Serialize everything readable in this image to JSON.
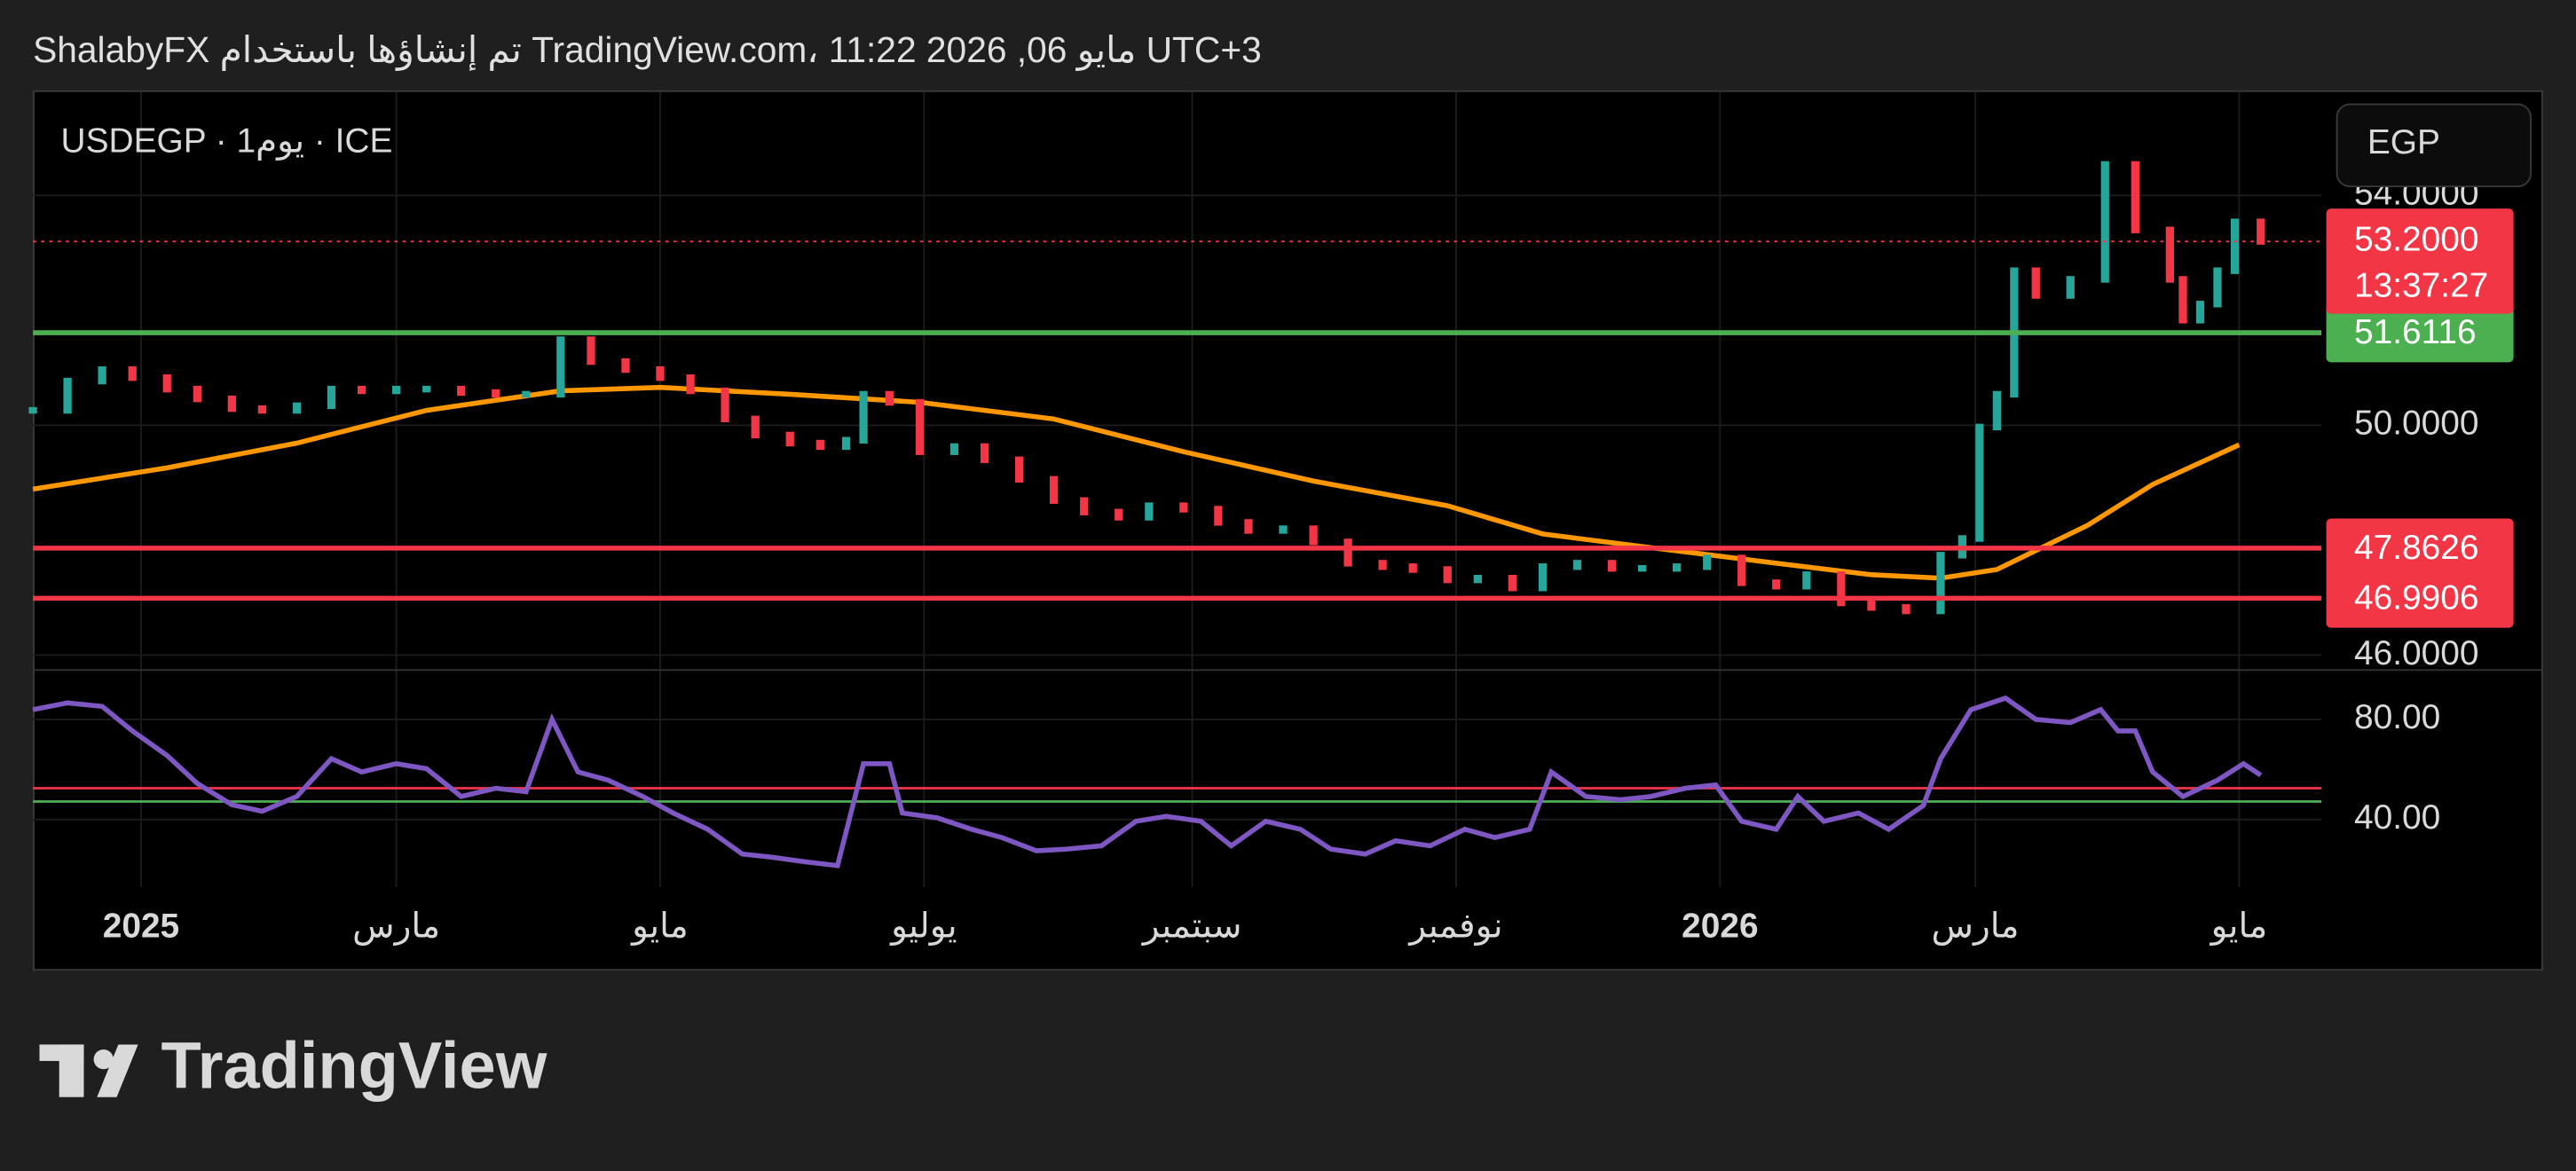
{
  "header": "ShalabyFX تم إنشاؤها باستخدام TradingView.com، 11:22 2026 ,06 مايو UTC+3",
  "currency_button": "EGP",
  "logo": "TradingView",
  "chart_data": [
    {
      "type": "candlestick",
      "title": "USDEGP · 1يوم · ICE",
      "up_color": "#26a69a",
      "down_color": "#f23645",
      "x": [
        -25,
        -17,
        -9,
        -2,
        6,
        13,
        21,
        28,
        36,
        44,
        51,
        59,
        66,
        74,
        82,
        89,
        97,
        104,
        112,
        120,
        127,
        135,
        142,
        150,
        157,
        163,
        167,
        173,
        180,
        188,
        195,
        203,
        211,
        218,
        226,
        233,
        241,
        249,
        256,
        264,
        271,
        279,
        287,
        294,
        302,
        309,
        317,
        324,
        332,
        340,
        347,
        355,
        362,
        370,
        378,
        385,
        393,
        400,
        408,
        416,
        421,
        425,
        429,
        433,
        438,
        446,
        454,
        461,
        469,
        472,
        476,
        480,
        484,
        490
      ],
      "values": [
        50.26,
        50.77,
        50.97,
        50.83,
        50.63,
        50.46,
        50.29,
        50.26,
        50.34,
        50.63,
        50.6,
        50.63,
        50.63,
        50.57,
        50.54,
        50.54,
        51.49,
        51.11,
        50.97,
        50.83,
        50.6,
        50.11,
        49.83,
        49.69,
        49.63,
        49.74,
        50.54,
        50.4,
        49.54,
        49.63,
        49.4,
        49.06,
        48.69,
        48.49,
        48.4,
        48.6,
        48.54,
        48.31,
        48.17,
        48.2,
        47.97,
        47.6,
        47.54,
        47.49,
        47.31,
        47.34,
        47.17,
        47.54,
        47.6,
        47.51,
        47.51,
        47.54,
        47.69,
        47.26,
        47.2,
        47.4,
        46.91,
        46.83,
        46.77,
        47.74,
        48.03,
        49.97,
        50.54,
        52.69,
        52.26,
        52.54,
        54.54,
        53.4,
        52.54,
        51.83,
        52.11,
        52.69,
        53.54,
        53.2
      ],
      "series": [
        {
          "color": "#ff9800",
          "x": [
            -25,
            6,
            36,
            66,
            97,
            120,
            150,
            180,
            211,
            241,
            271,
            302,
            324,
            347,
            378,
            400,
            416,
            429,
            450,
            465,
            485
          ],
          "values": [
            48.89,
            49.26,
            49.69,
            50.26,
            50.6,
            50.66,
            50.54,
            50.4,
            50.11,
            49.54,
            49.03,
            48.6,
            48.11,
            47.89,
            47.6,
            47.4,
            47.34,
            47.49,
            48.26,
            48.97,
            49.66
          ]
        }
      ],
      "xlim": [
        -25,
        504
      ],
      "xticks": [
        {
          "value": 0,
          "label": "2025"
        },
        {
          "value": 59,
          "label": "مارس"
        },
        {
          "value": 120,
          "label": "مايو"
        },
        {
          "value": 181,
          "label": "يوليو"
        },
        {
          "value": 243,
          "label": "سبتمبر"
        },
        {
          "value": 304,
          "label": "نوفمبر"
        },
        {
          "value": 365,
          "label": "2026"
        },
        {
          "value": 424,
          "label": "مارس"
        },
        {
          "value": 485,
          "label": "مايو"
        }
      ],
      "ylim": [
        45.74,
        55.83
      ],
      "yticks": [
        {
          "value": 46,
          "label": "46.0000"
        },
        {
          "value": 50,
          "label": "50.0000"
        },
        {
          "value": 54,
          "label": "54.0000"
        }
      ],
      "levels": [
        {
          "value": 51.6116,
          "label": "51.6116",
          "color": "#4caf50"
        },
        {
          "value": 47.8626,
          "label": "47.8626",
          "color": "#f23645"
        },
        {
          "value": 46.9906,
          "label": "46.9906",
          "color": "#f23645"
        }
      ],
      "last_price": {
        "value": 53.2,
        "label": "53.2000",
        "color": "#f23645"
      },
      "countdown": "13:37:27"
    },
    {
      "type": "line",
      "color": "#7e57c2",
      "x": [
        -25,
        -17,
        -9,
        -2,
        6,
        13,
        21,
        28,
        36,
        44,
        51,
        59,
        66,
        74,
        82,
        89,
        95,
        101,
        108,
        116,
        123,
        131,
        139,
        146,
        154,
        161,
        167,
        173,
        176,
        184,
        192,
        199,
        207,
        214,
        222,
        230,
        237,
        245,
        252,
        260,
        268,
        275,
        283,
        290,
        298,
        306,
        313,
        321,
        326,
        334,
        342,
        349,
        357,
        364,
        370,
        378,
        383,
        389,
        397,
        404,
        412,
        416,
        423,
        431,
        438,
        446,
        453,
        457,
        461,
        465,
        472,
        480,
        486,
        490
      ],
      "values": [
        83.9,
        86.6,
        85.2,
        75.4,
        65.6,
        54.4,
        45.9,
        43.3,
        49.2,
        64.3,
        59,
        62.3,
        60.3,
        49.2,
        52.5,
        51.1,
        80,
        59,
        55.7,
        49.2,
        42.6,
        36.1,
        26.2,
        24.9,
        23,
        21.6,
        62.3,
        62.3,
        42.6,
        40.7,
        36.1,
        32.8,
        27.5,
        28.2,
        29.5,
        39.3,
        41.3,
        39.3,
        29.5,
        39.3,
        36.1,
        28.2,
        26.2,
        31.5,
        29.5,
        36.1,
        32.8,
        36.1,
        59,
        49.2,
        47.9,
        49.2,
        52.5,
        53.8,
        39.3,
        36.1,
        49.2,
        39.3,
        42.6,
        36.1,
        45.6,
        64.3,
        83.9,
        88.5,
        80,
        78.7,
        83.9,
        75.4,
        75.4,
        59,
        49.2,
        55.7,
        62.3,
        57.7
      ],
      "xlim": [
        -25,
        504
      ],
      "ylim": [
        13.1,
        99.7
      ],
      "yticks": [
        {
          "value": 80,
          "label": "80.00"
        },
        {
          "value": 40,
          "label": "40.00"
        }
      ],
      "levels": [
        {
          "value": 52.5,
          "color": "#f23645"
        },
        {
          "value": 47.2,
          "color": "#4caf50"
        }
      ]
    }
  ]
}
